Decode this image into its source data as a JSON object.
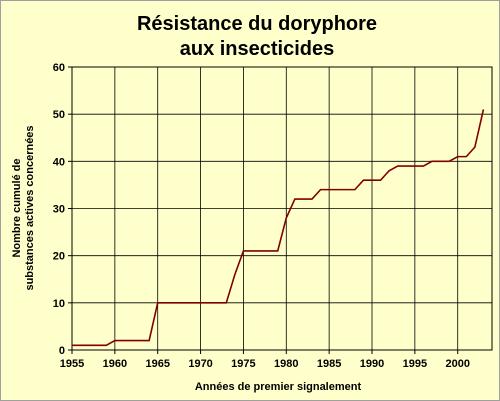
{
  "chart_data": {
    "type": "line",
    "title_lines": [
      "Résistance du doryphore",
      "aux insecticides"
    ],
    "xlabel": "Années de premier signalement",
    "ylabel_lines": [
      "Nombre cumulé de",
      "substances actives concernées"
    ],
    "xlim": [
      1955,
      2004
    ],
    "ylim": [
      0,
      60
    ],
    "x_ticks": [
      1955,
      1960,
      1965,
      1970,
      1975,
      1980,
      1985,
      1990,
      1995,
      2000
    ],
    "y_ticks": [
      0,
      10,
      20,
      30,
      40,
      50,
      60
    ],
    "grid": true,
    "legend": "none",
    "colors": {
      "plot_background": "#ffffcc",
      "line": "#800000",
      "grid": "#000000"
    },
    "series": [
      {
        "x": [
          1955,
          1956,
          1957,
          1958,
          1959,
          1960,
          1961,
          1962,
          1963,
          1964,
          1965,
          1966,
          1967,
          1968,
          1969,
          1970,
          1971,
          1972,
          1973,
          1974,
          1975,
          1976,
          1977,
          1978,
          1979,
          1980,
          1981,
          1982,
          1983,
          1984,
          1985,
          1986,
          1987,
          1988,
          1989,
          1990,
          1991,
          1992,
          1993,
          1994,
          1995,
          1996,
          1997,
          1998,
          1999,
          2000,
          2001,
          2002,
          2003
        ],
        "values": [
          1,
          1,
          1,
          1,
          1,
          2,
          2,
          2,
          2,
          2,
          10,
          10,
          10,
          10,
          10,
          10,
          10,
          10,
          10,
          16,
          21,
          21,
          21,
          21,
          21,
          28,
          32,
          32,
          32,
          34,
          34,
          34,
          34,
          34,
          36,
          36,
          36,
          38,
          39,
          39,
          39,
          39,
          40,
          40,
          40,
          41,
          41,
          43,
          51
        ]
      }
    ]
  }
}
